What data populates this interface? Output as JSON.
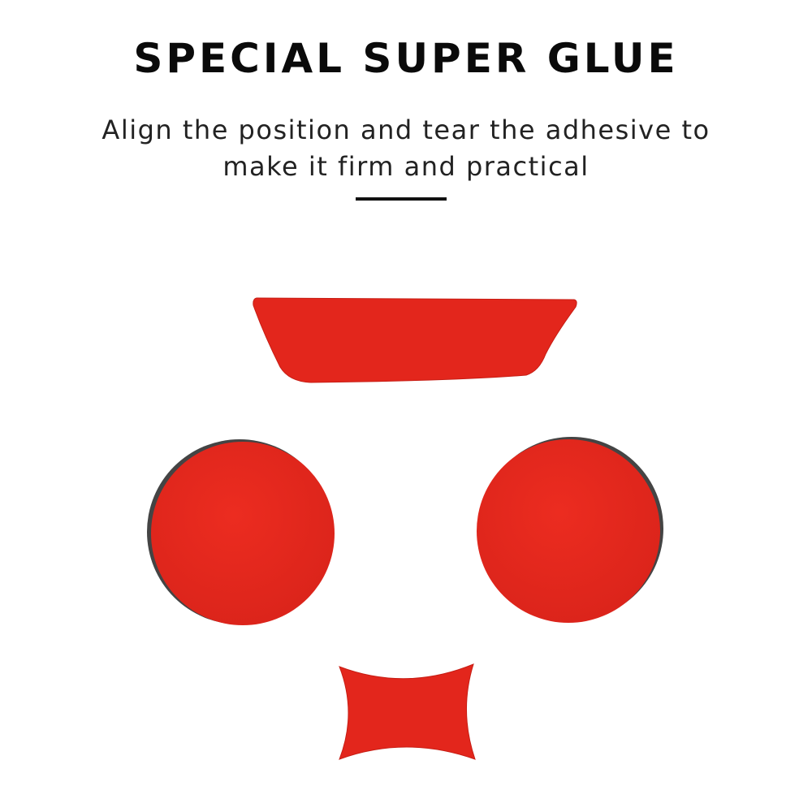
{
  "heading": {
    "title": "SPECIAL SUPER GLUE",
    "subtitle_line1": "Align the position and tear the adhesive to",
    "subtitle_line2": "make it firm and practical"
  },
  "colors": {
    "background": "#ffffff",
    "text": "#0a0a0a",
    "adhesive_red": "#e3261c",
    "backing_dark": "#3a3a3a"
  },
  "adhesive_pads": [
    {
      "shape": "strip"
    },
    {
      "shape": "circle"
    },
    {
      "shape": "circle"
    },
    {
      "shape": "bowtie"
    }
  ]
}
